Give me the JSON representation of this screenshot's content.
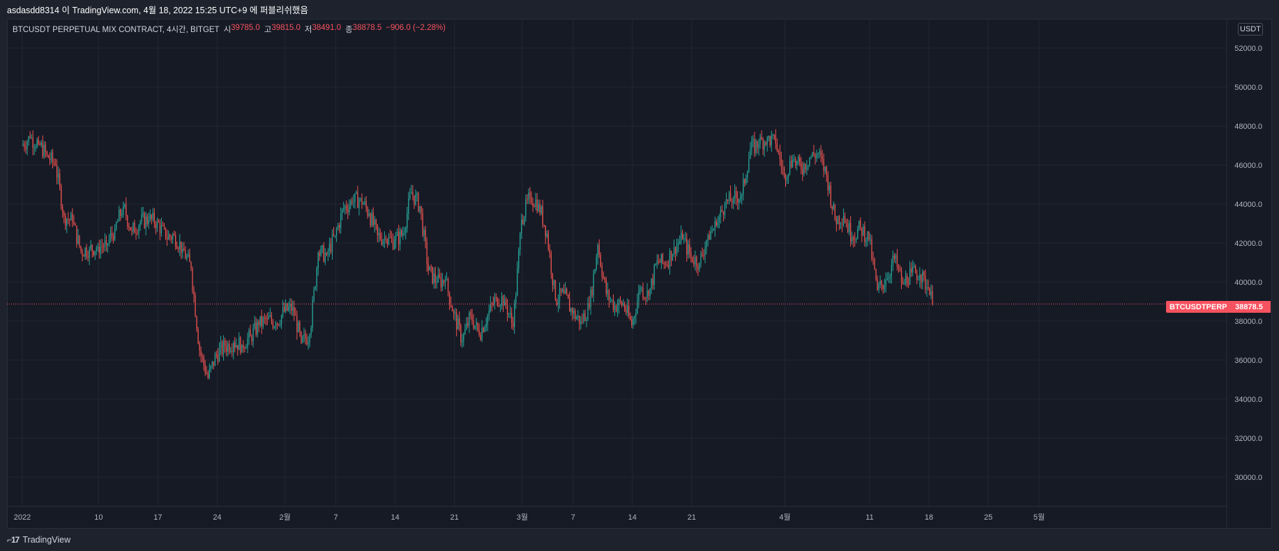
{
  "header": {
    "publish_text": "asdasdd8314 이 TradingView.com, 4월 18, 2022 15:25 UTC+9 에 퍼블리쉬했음"
  },
  "legend": {
    "symbol": "BTCUSDT PERPETUAL MIX CONTRACT, 4시간, BITGET",
    "open_label": "시",
    "open_value": "39785.0",
    "high_label": "고",
    "high_value": "39815.0",
    "low_label": "저",
    "low_value": "38491.0",
    "close_label": "종",
    "close_value": "38878.5",
    "change": "−906.0 (−2.28%)"
  },
  "price_axis": {
    "unit": "USDT",
    "ticks": [
      "52000.0",
      "50000.0",
      "48000.0",
      "46000.0",
      "44000.0",
      "42000.0",
      "40000.0",
      "38000.0",
      "36000.0",
      "34000.0",
      "32000.0",
      "30000.0"
    ]
  },
  "price_tag": {
    "name": "BTCUSDTPERP",
    "value": "38878.5"
  },
  "time_axis": {
    "labels": [
      "2022",
      "10",
      "17",
      "24",
      "2월",
      "7",
      "14",
      "21",
      "3월",
      "7",
      "14",
      "21",
      "4월",
      "11",
      "18",
      "25",
      "5월"
    ]
  },
  "footer": {
    "brand": "TradingView"
  },
  "colors": {
    "up": "#26a69a",
    "down": "#ef5350",
    "background": "#161a25",
    "grid": "#222733",
    "last_price": "#f7525f"
  },
  "chart_data": {
    "type": "candlestick",
    "symbol": "BTCUSDT PERPETUAL MIX CONTRACT",
    "interval": "4시간",
    "exchange": "BITGET",
    "ylim": [
      28500,
      53500
    ],
    "last_price": 38878.5,
    "grid": true,
    "y_ticks": [
      52000,
      50000,
      48000,
      46000,
      44000,
      42000,
      40000,
      38000,
      36000,
      34000,
      32000,
      30000
    ],
    "x_tick_labels": [
      "2022",
      "10",
      "17",
      "24",
      "2월",
      "7",
      "14",
      "21",
      "3월",
      "7",
      "14",
      "21",
      "4월",
      "11",
      "18",
      "25",
      "5월"
    ],
    "daily_closes": [
      {
        "date": "2022-01-01",
        "close": 47400
      },
      {
        "date": "2022-01-02",
        "close": 47100
      },
      {
        "date": "2022-01-03",
        "close": 46500
      },
      {
        "date": "2022-01-04",
        "close": 46000
      },
      {
        "date": "2022-01-05",
        "close": 43400
      },
      {
        "date": "2022-01-06",
        "close": 43100
      },
      {
        "date": "2022-01-07",
        "close": 41600
      },
      {
        "date": "2022-01-08",
        "close": 41700
      },
      {
        "date": "2022-01-09",
        "close": 41800
      },
      {
        "date": "2022-01-10",
        "close": 41900
      },
      {
        "date": "2022-01-11",
        "close": 42700
      },
      {
        "date": "2022-01-12",
        "close": 43900
      },
      {
        "date": "2022-01-13",
        "close": 42600
      },
      {
        "date": "2022-01-14",
        "close": 43100
      },
      {
        "date": "2022-01-15",
        "close": 43200
      },
      {
        "date": "2022-01-16",
        "close": 43100
      },
      {
        "date": "2022-01-17",
        "close": 42300
      },
      {
        "date": "2022-01-18",
        "close": 42400
      },
      {
        "date": "2022-01-19",
        "close": 41700
      },
      {
        "date": "2022-01-20",
        "close": 40700
      },
      {
        "date": "2022-01-21",
        "close": 36500
      },
      {
        "date": "2022-01-22",
        "close": 35100
      },
      {
        "date": "2022-01-23",
        "close": 36300
      },
      {
        "date": "2022-01-24",
        "close": 36700
      },
      {
        "date": "2022-01-25",
        "close": 36900
      },
      {
        "date": "2022-01-26",
        "close": 36800
      },
      {
        "date": "2022-01-27",
        "close": 37200
      },
      {
        "date": "2022-01-28",
        "close": 37800
      },
      {
        "date": "2022-01-29",
        "close": 38100
      },
      {
        "date": "2022-01-30",
        "close": 37900
      },
      {
        "date": "2022-01-31",
        "close": 38500
      },
      {
        "date": "2022-02-01",
        "close": 38700
      },
      {
        "date": "2022-02-02",
        "close": 36900
      },
      {
        "date": "2022-02-03",
        "close": 37300
      },
      {
        "date": "2022-02-04",
        "close": 41500
      },
      {
        "date": "2022-02-05",
        "close": 41400
      },
      {
        "date": "2022-02-06",
        "close": 42400
      },
      {
        "date": "2022-02-07",
        "close": 43800
      },
      {
        "date": "2022-02-08",
        "close": 44100
      },
      {
        "date": "2022-02-09",
        "close": 44300
      },
      {
        "date": "2022-02-10",
        "close": 43500
      },
      {
        "date": "2022-02-11",
        "close": 42400
      },
      {
        "date": "2022-02-12",
        "close": 42200
      },
      {
        "date": "2022-02-13",
        "close": 42100
      },
      {
        "date": "2022-02-14",
        "close": 42500
      },
      {
        "date": "2022-02-15",
        "close": 44600
      },
      {
        "date": "2022-02-16",
        "close": 43900
      },
      {
        "date": "2022-02-17",
        "close": 40600
      },
      {
        "date": "2022-02-18",
        "close": 40000
      },
      {
        "date": "2022-02-19",
        "close": 40100
      },
      {
        "date": "2022-02-20",
        "close": 38400
      },
      {
        "date": "2022-02-21",
        "close": 37000
      },
      {
        "date": "2022-02-22",
        "close": 38300
      },
      {
        "date": "2022-02-23",
        "close": 37300
      },
      {
        "date": "2022-02-24",
        "close": 38300
      },
      {
        "date": "2022-02-25",
        "close": 39200
      },
      {
        "date": "2022-02-26",
        "close": 39100
      },
      {
        "date": "2022-02-27",
        "close": 37700
      },
      {
        "date": "2022-02-28",
        "close": 43200
      },
      {
        "date": "2022-03-01",
        "close": 44400
      },
      {
        "date": "2022-03-02",
        "close": 44000
      },
      {
        "date": "2022-03-03",
        "close": 42500
      },
      {
        "date": "2022-03-04",
        "close": 39100
      },
      {
        "date": "2022-03-05",
        "close": 39400
      },
      {
        "date": "2022-03-06",
        "close": 38400
      },
      {
        "date": "2022-03-07",
        "close": 38000
      },
      {
        "date": "2022-03-08",
        "close": 38700
      },
      {
        "date": "2022-03-09",
        "close": 41900
      },
      {
        "date": "2022-03-10",
        "close": 39400
      },
      {
        "date": "2022-03-11",
        "close": 38800
      },
      {
        "date": "2022-03-12",
        "close": 38900
      },
      {
        "date": "2022-03-13",
        "close": 37800
      },
      {
        "date": "2022-03-14",
        "close": 39700
      },
      {
        "date": "2022-03-15",
        "close": 39300
      },
      {
        "date": "2022-03-16",
        "close": 41100
      },
      {
        "date": "2022-03-17",
        "close": 40900
      },
      {
        "date": "2022-03-18",
        "close": 41800
      },
      {
        "date": "2022-03-19",
        "close": 42200
      },
      {
        "date": "2022-03-20",
        "close": 41300
      },
      {
        "date": "2022-03-21",
        "close": 41000
      },
      {
        "date": "2022-03-22",
        "close": 42400
      },
      {
        "date": "2022-03-23",
        "close": 42900
      },
      {
        "date": "2022-03-24",
        "close": 44000
      },
      {
        "date": "2022-03-25",
        "close": 44300
      },
      {
        "date": "2022-03-26",
        "close": 44500
      },
      {
        "date": "2022-03-27",
        "close": 46800
      },
      {
        "date": "2022-03-28",
        "close": 47100
      },
      {
        "date": "2022-03-29",
        "close": 47400
      },
      {
        "date": "2022-03-30",
        "close": 47100
      },
      {
        "date": "2022-03-31",
        "close": 45500
      },
      {
        "date": "2022-04-01",
        "close": 46300
      },
      {
        "date": "2022-04-02",
        "close": 45800
      },
      {
        "date": "2022-04-03",
        "close": 46400
      },
      {
        "date": "2022-04-04",
        "close": 46600
      },
      {
        "date": "2022-04-05",
        "close": 45500
      },
      {
        "date": "2022-04-06",
        "close": 43200
      },
      {
        "date": "2022-04-07",
        "close": 43400
      },
      {
        "date": "2022-04-08",
        "close": 42300
      },
      {
        "date": "2022-04-09",
        "close": 42800
      },
      {
        "date": "2022-04-10",
        "close": 42200
      },
      {
        "date": "2022-04-11",
        "close": 39600
      },
      {
        "date": "2022-04-12",
        "close": 40100
      },
      {
        "date": "2022-04-13",
        "close": 41200
      },
      {
        "date": "2022-04-14",
        "close": 39900
      },
      {
        "date": "2022-04-15",
        "close": 40500
      },
      {
        "date": "2022-04-16",
        "close": 40400
      },
      {
        "date": "2022-04-17",
        "close": 39700
      },
      {
        "date": "2022-04-18",
        "close": 38878.5
      }
    ]
  }
}
